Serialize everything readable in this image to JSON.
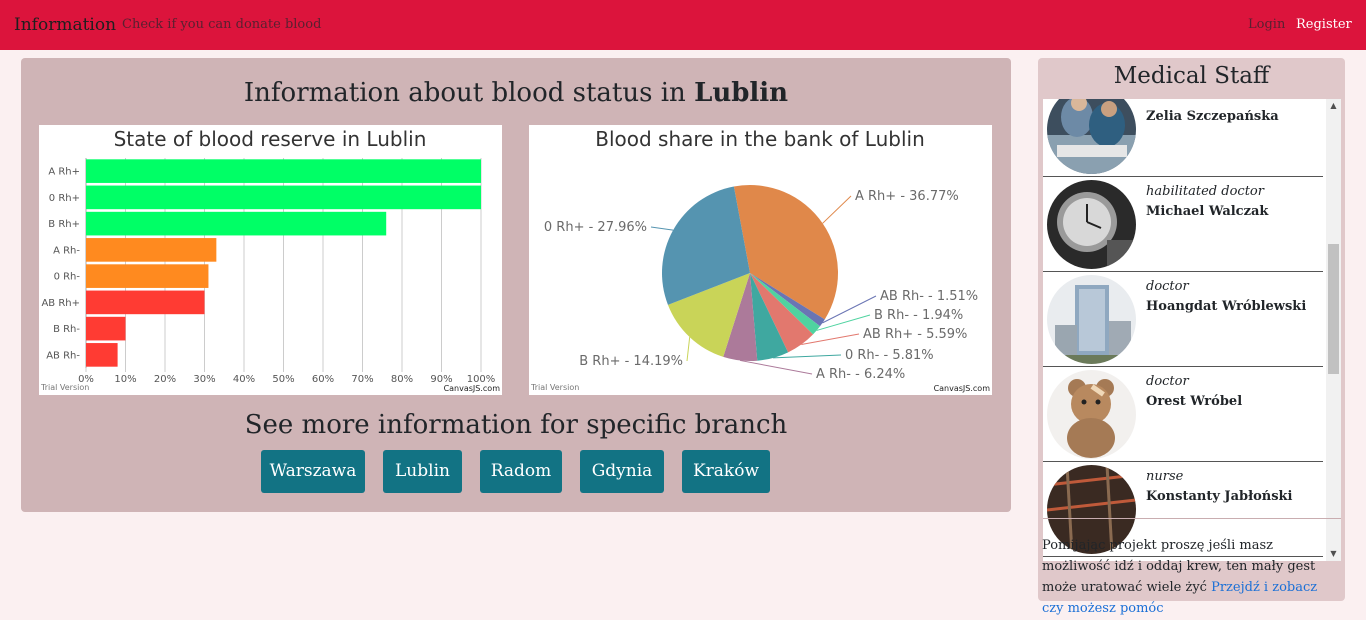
{
  "nav": {
    "brand": "Information",
    "check_link": "Check if you can donate blood",
    "login": "Login",
    "register": "Register"
  },
  "main": {
    "title_prefix": "Information about blood status in",
    "city": "Lublin",
    "branch_heading": "See more information for specific branch",
    "branches": [
      "Warszawa",
      "Lublin",
      "Radom",
      "Gdynia",
      "Kraków"
    ]
  },
  "chart_data": [
    {
      "type": "bar",
      "orientation": "horizontal",
      "title": "State of blood reserve in Lublin",
      "categories": [
        "A Rh+",
        "0 Rh+",
        "B Rh+",
        "A Rh-",
        "0 Rh-",
        "AB Rh+",
        "B Rh-",
        "AB Rh-"
      ],
      "values": [
        100,
        100,
        76,
        33,
        31,
        30,
        10,
        8
      ],
      "bar_colors": [
        "#00ff66",
        "#00ff66",
        "#00ff66",
        "#ff8a1f",
        "#ff8a1f",
        "#ff3b33",
        "#ff3b33",
        "#ff3b33"
      ],
      "xlim": [
        0,
        100
      ],
      "x_ticks": [
        "0%",
        "10%",
        "20%",
        "30%",
        "40%",
        "50%",
        "60%",
        "70%",
        "80%",
        "90%",
        "100%"
      ],
      "grid": "vertical",
      "watermark_left": "Trial Version",
      "watermark_right": "CanvasJS.com"
    },
    {
      "type": "pie",
      "title": "Blood share in the bank of Lublin",
      "slices": [
        {
          "label": "A Rh+ - 36.77%",
          "value": 36.77,
          "color": "#e0884a"
        },
        {
          "label": "AB Rh- - 1.51%",
          "value": 1.51,
          "color": "#6a75b4"
        },
        {
          "label": "B Rh- - 1.94%",
          "value": 1.94,
          "color": "#4fd3a0"
        },
        {
          "label": "AB Rh+ - 5.59%",
          "value": 5.59,
          "color": "#e2786e"
        },
        {
          "label": "0 Rh- - 5.81%",
          "value": 5.81,
          "color": "#3fa8a0"
        },
        {
          "label": "A Rh- - 6.24%",
          "value": 6.24,
          "color": "#ac7a9a"
        },
        {
          "label": "B Rh+ - 14.19%",
          "value": 14.19,
          "color": "#c9d458"
        },
        {
          "label": "0 Rh+ - 27.96%",
          "value": 27.96,
          "color": "#5594b0"
        }
      ],
      "watermark_left": "Trial Version",
      "watermark_right": "CanvasJS.com"
    }
  ],
  "staff": {
    "title": "Medical Staff",
    "members": [
      {
        "role": "",
        "name": "Zelia Szczepańska",
        "avatar_icon": "doctors-photo-icon"
      },
      {
        "role": "habilitated doctor",
        "name": "Michael Walczak",
        "avatar_icon": "clock-photo-icon"
      },
      {
        "role": "doctor",
        "name": "Hoangdat Wróblewski",
        "avatar_icon": "hospital-building-photo-icon"
      },
      {
        "role": "doctor",
        "name": "Orest Wróbel",
        "avatar_icon": "teddy-bear-photo-icon"
      },
      {
        "role": "nurse",
        "name": "Konstanty Jabłoński",
        "avatar_icon": "scaffolding-photo-icon"
      }
    ],
    "scroll_up": "▲",
    "scroll_down": "▼"
  },
  "footer": {
    "text": "Pomijając projekt proszę jeśli masz możliwość idź i oddaj krew, ten mały gest może uratować wiele żyć",
    "link": "Przejdź i zobacz czy możesz pomóc"
  }
}
